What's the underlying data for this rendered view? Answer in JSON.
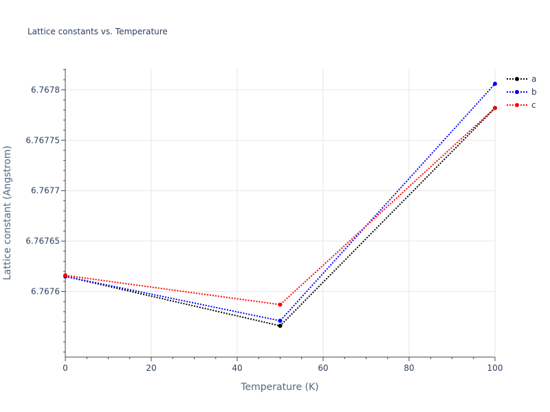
{
  "chart_data": {
    "type": "line",
    "title": "Lattice constants vs. Temperature",
    "xlabel": "Temperature (K)",
    "ylabel": "Lattice constant (Angstrom)",
    "xlim": [
      0,
      100
    ],
    "ylim": [
      6.767535,
      6.767821
    ],
    "x_ticks": [
      0,
      20,
      40,
      60,
      80,
      100
    ],
    "x_tick_labels": [
      "0",
      "20",
      "40",
      "60",
      "80",
      "100"
    ],
    "y_ticks": [
      6.7676,
      6.76765,
      6.7677,
      6.76775,
      6.7678
    ],
    "y_tick_labels": [
      "6.7676",
      "6.76765",
      "6.7677",
      "6.76775",
      "6.7678"
    ],
    "grid": true,
    "legend_position": "right",
    "series": [
      {
        "name": "a",
        "color": "#000000",
        "x": [
          0,
          50,
          100
        ],
        "y": [
          6.767615,
          6.767566,
          6.767782
        ]
      },
      {
        "name": "b",
        "color": "#0000ff",
        "x": [
          0,
          50,
          100
        ],
        "y": [
          6.767615,
          6.767571,
          6.767806
        ]
      },
      {
        "name": "c",
        "color": "#ff0000",
        "x": [
          0,
          50,
          100
        ],
        "y": [
          6.767616,
          6.767587,
          6.767782
        ]
      }
    ]
  }
}
